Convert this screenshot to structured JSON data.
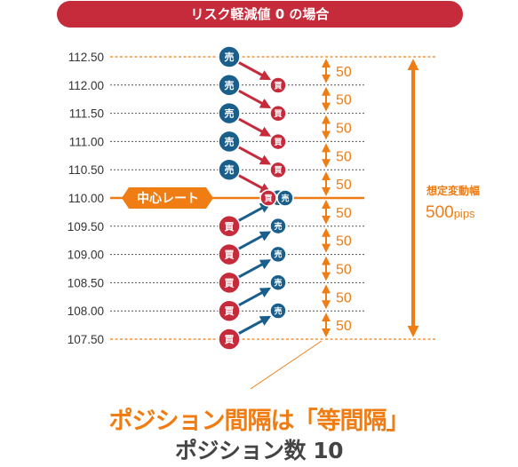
{
  "banner_title": "リスク軽減値 0 の場合",
  "price_levels": [
    "112.50",
    "112.00",
    "111.50",
    "111.00",
    "110.50",
    "110.00",
    "109.50",
    "109.00",
    "108.50",
    "108.00",
    "107.50"
  ],
  "center_label": "中心レート",
  "sell_label": "売",
  "buy_label": "買",
  "gap_labels": [
    "50",
    "50",
    "50",
    "50",
    "50",
    "50",
    "50",
    "50",
    "50",
    "50"
  ],
  "range_title": "想定変動幅",
  "range_value": "500",
  "range_unit": "pips",
  "footer_line1": "ポジション間隔は「等間隔」",
  "footer_line2": "ポジション数 10",
  "colors": {
    "sell": "#1a5f8c",
    "buy": "#c62b3b",
    "orange": "#ef7d14",
    "banner": "#c62b3b",
    "arrow_red": "#c62b3b",
    "arrow_blue": "#1a5f8c"
  }
}
